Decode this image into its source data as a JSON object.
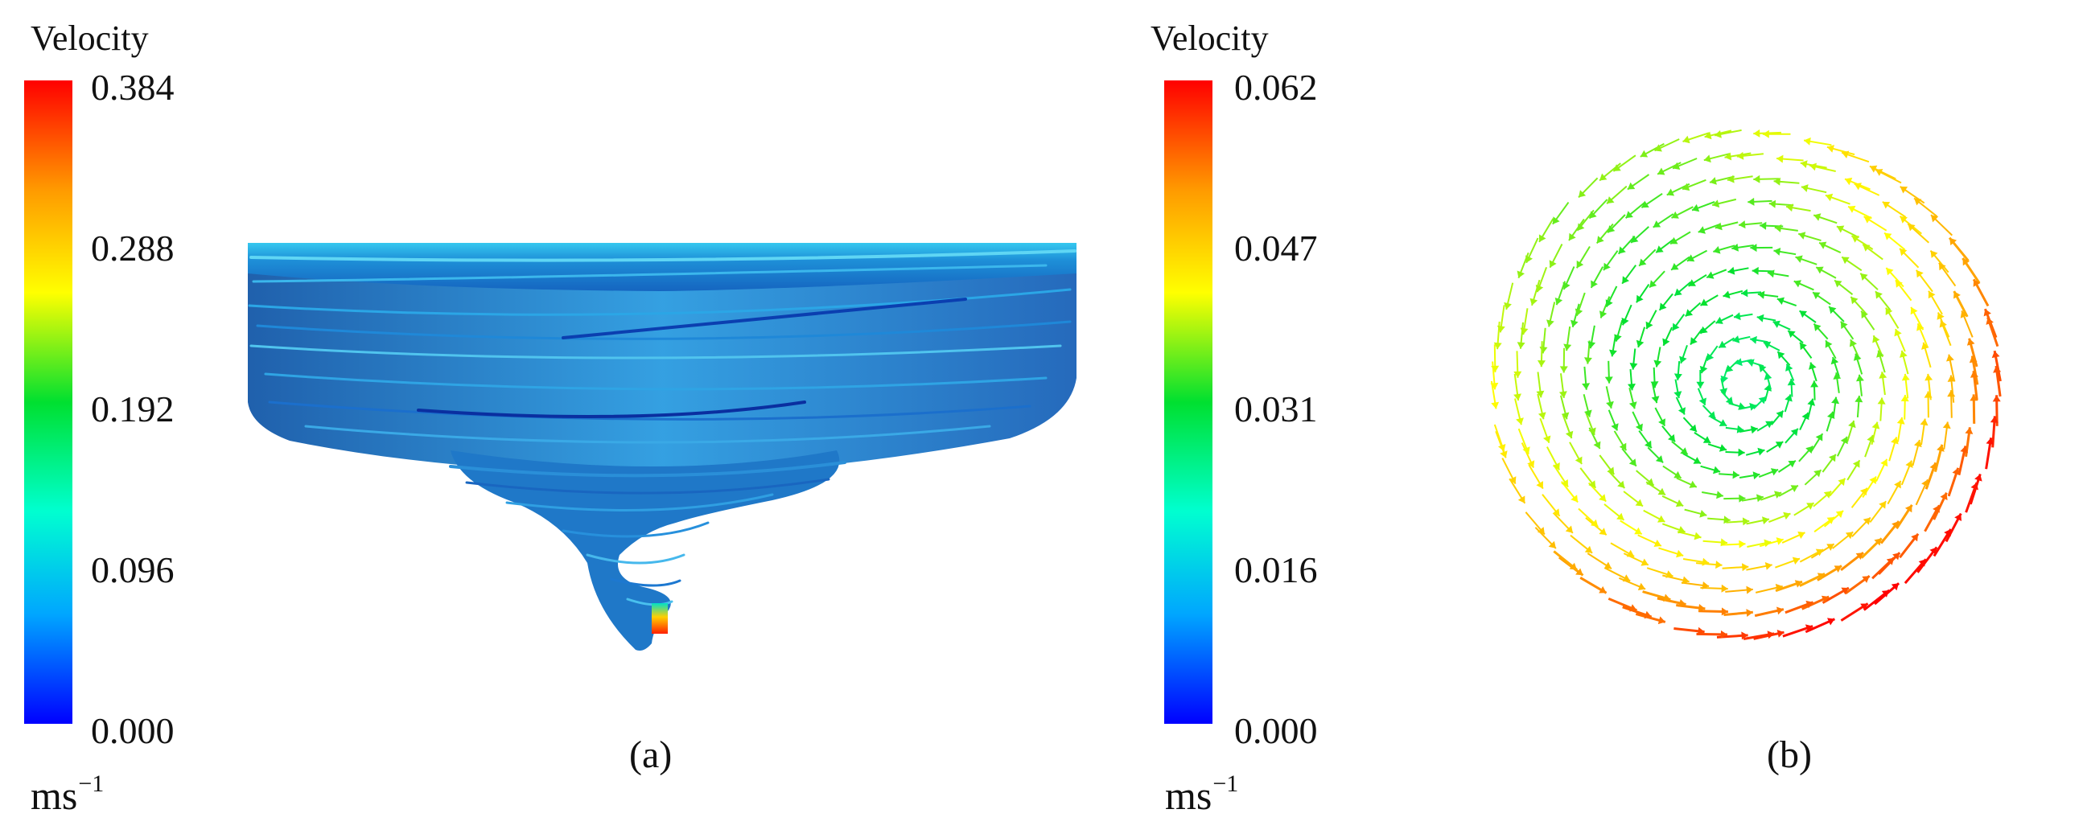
{
  "figure_a": {
    "legend": {
      "title": "Velocity",
      "ticks": [
        "0.384",
        "0.288",
        "0.192",
        "0.096",
        "0.000"
      ],
      "unit_base": "ms",
      "unit_exponent": "−1"
    },
    "caption": "(a)"
  },
  "figure_b": {
    "legend": {
      "title": "Velocity",
      "ticks": [
        "0.062",
        "0.047",
        "0.031",
        "0.016",
        "0.000"
      ],
      "unit_base": "ms",
      "unit_exponent": "−1"
    },
    "caption": "(b)"
  },
  "colormap": [
    "#0000ff",
    "#00a6ff",
    "#00ffd0",
    "#00e030",
    "#ffff00",
    "#ff9a00",
    "#ff0000"
  ]
}
